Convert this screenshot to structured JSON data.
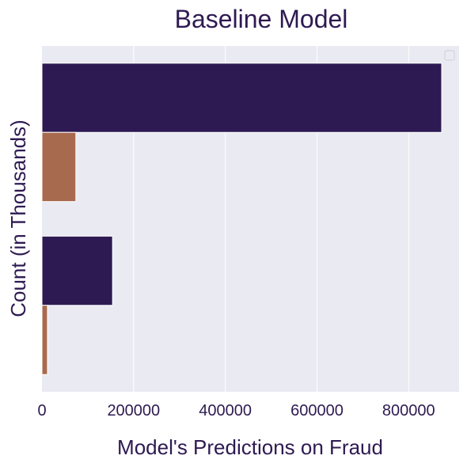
{
  "chart_data": {
    "type": "bar",
    "orientation": "horizontal",
    "title": "Baseline Model",
    "xlabel": "Model's Predictions on Fraud",
    "ylabel": "Count (in Thousands)",
    "xlim": [
      0,
      910000
    ],
    "xticks": [
      0,
      200000,
      400000,
      600000,
      800000
    ],
    "xtick_labels": [
      "0",
      "200000",
      "400000",
      "600000",
      "800000"
    ],
    "grid": true,
    "legend": "top-right",
    "categories": [
      "",
      ""
    ],
    "series": [
      {
        "values": [
          872000,
          154000
        ]
      },
      {
        "values": [
          74000,
          12000
        ]
      }
    ]
  },
  "colors": {
    "plot_background": "#EAEAF2",
    "grid": "#ffffff",
    "text": "#2E1A52",
    "series": [
      "#2E1A52",
      "#A86A4E"
    ]
  }
}
